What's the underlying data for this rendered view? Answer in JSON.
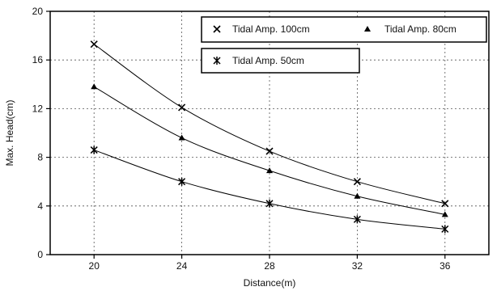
{
  "chart_data": {
    "type": "line",
    "xlabel": "Distance(m)",
    "ylabel": "Max. Head(cm)",
    "x": [
      20,
      24,
      28,
      32,
      36
    ],
    "x_ticks": [
      20,
      24,
      28,
      32,
      36
    ],
    "y_ticks": [
      0,
      4,
      8,
      12,
      16,
      20
    ],
    "xlim": [
      18,
      38
    ],
    "ylim": [
      0,
      20
    ],
    "grid": true,
    "legend_position": "top-right",
    "series": [
      {
        "name": "Tidal Amp. 100cm",
        "marker": "x",
        "values": [
          17.3,
          12.1,
          8.5,
          6.0,
          4.2
        ]
      },
      {
        "name": "Tidal Amp. 80cm",
        "marker": "triangle",
        "values": [
          13.8,
          9.6,
          6.9,
          4.8,
          3.3
        ]
      },
      {
        "name": "Tidal Amp. 50cm",
        "marker": "asterisk",
        "values": [
          8.6,
          6.0,
          4.2,
          2.9,
          2.1
        ]
      }
    ]
  }
}
